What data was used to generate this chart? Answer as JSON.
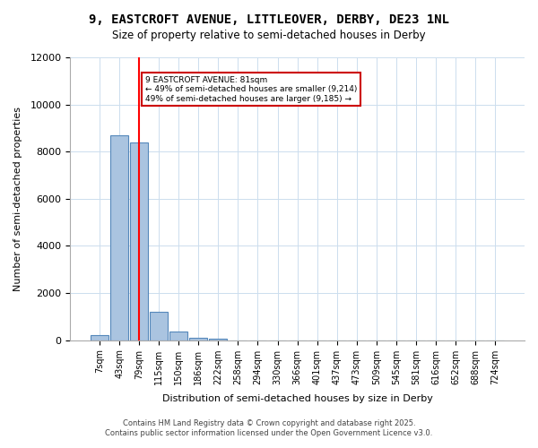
{
  "title_line1": "9, EASTCROFT AVENUE, LITTLEOVER, DERBY, DE23 1NL",
  "title_line2": "Size of property relative to semi-detached houses in Derby",
  "xlabel": "Distribution of semi-detached houses by size in Derby",
  "ylabel": "Number of semi-detached properties",
  "categories": [
    "7sqm",
    "43sqm",
    "79sqm",
    "115sqm",
    "150sqm",
    "186sqm",
    "222sqm",
    "258sqm",
    "294sqm",
    "330sqm",
    "366sqm",
    "401sqm",
    "437sqm",
    "473sqm",
    "509sqm",
    "545sqm",
    "581sqm",
    "616sqm",
    "652sqm",
    "688sqm",
    "724sqm"
  ],
  "values": [
    200,
    8700,
    8400,
    1200,
    350,
    100,
    80,
    0,
    0,
    0,
    0,
    0,
    0,
    0,
    0,
    0,
    0,
    0,
    0,
    0,
    0
  ],
  "bar_color": "#aac4e0",
  "bar_edge_color": "#5588bb",
  "red_line_index": 2,
  "annotation_text": "9 EASTCROFT AVENUE: 81sqm\n← 49% of semi-detached houses are smaller (9,214)\n49% of semi-detached houses are larger (9,185) →",
  "annotation_box_color": "#ffffff",
  "annotation_box_edge_color": "#cc0000",
  "ylim": [
    0,
    12000
  ],
  "yticks": [
    0,
    2000,
    4000,
    6000,
    8000,
    10000,
    12000
  ],
  "background_color": "#ffffff",
  "grid_color": "#ccddee",
  "footer_line1": "Contains HM Land Registry data © Crown copyright and database right 2025.",
  "footer_line2": "Contains public sector information licensed under the Open Government Licence v3.0."
}
